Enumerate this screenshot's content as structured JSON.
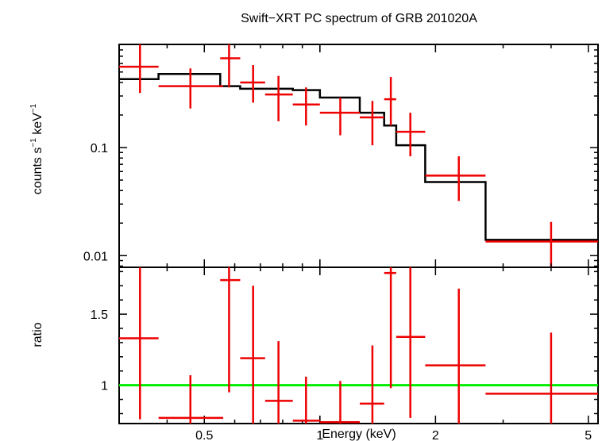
{
  "chart_data": [
    {
      "type": "scatter",
      "title": "Swift−XRT PC spectrum of GRB 201020A",
      "ylabel_main": "counts s",
      "ylabel_sup1": "−1",
      "ylabel_mid": " keV",
      "ylabel_sup2": "−1",
      "xscale": "log",
      "yscale": "log",
      "xlim": [
        0.3,
        5.3
      ],
      "ylim": [
        0.0078,
        0.9
      ],
      "yticks": [
        {
          "v": 0.01,
          "label": "0.01"
        },
        {
          "v": 0.1,
          "label": "0.1"
        }
      ],
      "colors": {
        "data": "#ee0000",
        "model": "#000000"
      },
      "data_points": [
        {
          "x": 0.34,
          "xlo": 0.3,
          "xhi": 0.38,
          "y": 0.56,
          "ylo": 0.32,
          "yhi": 0.92
        },
        {
          "x": 0.46,
          "xlo": 0.38,
          "xhi": 0.56,
          "y": 0.37,
          "ylo": 0.23,
          "yhi": 0.54
        },
        {
          "x": 0.58,
          "xlo": 0.55,
          "xhi": 0.62,
          "y": 0.67,
          "ylo": 0.36,
          "yhi": 0.9
        },
        {
          "x": 0.67,
          "xlo": 0.62,
          "xhi": 0.72,
          "y": 0.4,
          "ylo": 0.26,
          "yhi": 0.58
        },
        {
          "x": 0.78,
          "xlo": 0.72,
          "xhi": 0.85,
          "y": 0.31,
          "ylo": 0.175,
          "yhi": 0.46
        },
        {
          "x": 0.92,
          "xlo": 0.85,
          "xhi": 1.0,
          "y": 0.25,
          "ylo": 0.16,
          "yhi": 0.36
        },
        {
          "x": 1.13,
          "xlo": 1.0,
          "xhi": 1.27,
          "y": 0.21,
          "ylo": 0.13,
          "yhi": 0.29
        },
        {
          "x": 1.37,
          "xlo": 1.27,
          "xhi": 1.47,
          "y": 0.19,
          "ylo": 0.105,
          "yhi": 0.27
        },
        {
          "x": 1.53,
          "xlo": 1.47,
          "xhi": 1.58,
          "y": 0.28,
          "ylo": 0.16,
          "yhi": 0.45
        },
        {
          "x": 1.72,
          "xlo": 1.58,
          "xhi": 1.88,
          "y": 0.14,
          "ylo": 0.083,
          "yhi": 0.21
        },
        {
          "x": 2.3,
          "xlo": 1.88,
          "xhi": 2.7,
          "y": 0.055,
          "ylo": 0.032,
          "yhi": 0.083
        },
        {
          "x": 4.0,
          "xlo": 2.7,
          "xhi": 5.3,
          "y": 0.0135,
          "ylo": 0.0078,
          "yhi": 0.0205
        }
      ],
      "model_steps": [
        {
          "xlo": 0.3,
          "xhi": 0.38,
          "y": 0.43
        },
        {
          "xlo": 0.38,
          "xhi": 0.55,
          "y": 0.48
        },
        {
          "xlo": 0.55,
          "xhi": 0.62,
          "y": 0.37
        },
        {
          "xlo": 0.62,
          "xhi": 0.85,
          "y": 0.35
        },
        {
          "xlo": 0.85,
          "xhi": 1.0,
          "y": 0.34
        },
        {
          "xlo": 1.0,
          "xhi": 1.27,
          "y": 0.29
        },
        {
          "xlo": 1.27,
          "xhi": 1.47,
          "y": 0.21
        },
        {
          "xlo": 1.47,
          "xhi": 1.58,
          "y": 0.16
        },
        {
          "xlo": 1.58,
          "xhi": 1.88,
          "y": 0.105
        },
        {
          "xlo": 1.88,
          "xhi": 2.7,
          "y": 0.048
        },
        {
          "xlo": 2.7,
          "xhi": 5.3,
          "y": 0.014
        }
      ]
    },
    {
      "type": "scatter",
      "xlabel": "Energy (keV)",
      "ylabel": "ratio",
      "xscale": "log",
      "xlim": [
        0.3,
        5.3
      ],
      "ylim": [
        0.73,
        1.83
      ],
      "xticks": [
        {
          "v": 0.5,
          "label": "0.5"
        },
        {
          "v": 1,
          "label": "1"
        },
        {
          "v": 2,
          "label": "2"
        },
        {
          "v": 5,
          "label": "5"
        }
      ],
      "yticks": [
        {
          "v": 1,
          "label": "1"
        },
        {
          "v": 1.5,
          "label": "1.5"
        }
      ],
      "reference_line": 1,
      "colors": {
        "data": "#ee0000",
        "reference": "#00ee00"
      },
      "data_points": [
        {
          "x": 0.34,
          "xlo": 0.3,
          "xhi": 0.38,
          "y": 1.33,
          "ylo": 0.76,
          "yhi": 1.83
        },
        {
          "x": 0.46,
          "xlo": 0.38,
          "xhi": 0.56,
          "y": 0.77,
          "ylo": 0.73,
          "yhi": 1.07
        },
        {
          "x": 0.58,
          "xlo": 0.55,
          "xhi": 0.62,
          "y": 1.74,
          "ylo": 0.95,
          "yhi": 1.83
        },
        {
          "x": 0.67,
          "xlo": 0.62,
          "xhi": 0.72,
          "y": 1.19,
          "ylo": 0.73,
          "yhi": 1.7
        },
        {
          "x": 0.78,
          "xlo": 0.72,
          "xhi": 0.85,
          "y": 0.89,
          "ylo": 0.73,
          "yhi": 1.31
        },
        {
          "x": 0.92,
          "xlo": 0.85,
          "xhi": 1.0,
          "y": 0.75,
          "ylo": 0.73,
          "yhi": 1.06
        },
        {
          "x": 1.13,
          "xlo": 1.0,
          "xhi": 1.27,
          "y": 0.74,
          "ylo": 0.73,
          "yhi": 1.03
        },
        {
          "x": 1.37,
          "xlo": 1.27,
          "xhi": 1.47,
          "y": 0.87,
          "ylo": 0.73,
          "yhi": 1.28
        },
        {
          "x": 1.53,
          "xlo": 1.47,
          "xhi": 1.58,
          "y": 1.79,
          "ylo": 0.98,
          "yhi": 1.83
        },
        {
          "x": 1.72,
          "xlo": 1.58,
          "xhi": 1.88,
          "y": 1.34,
          "ylo": 0.77,
          "yhi": 1.83
        },
        {
          "x": 2.3,
          "xlo": 1.88,
          "xhi": 2.7,
          "y": 1.14,
          "ylo": 0.73,
          "yhi": 1.68
        },
        {
          "x": 4.0,
          "xlo": 2.7,
          "xhi": 5.3,
          "y": 0.94,
          "ylo": 0.73,
          "yhi": 1.37
        }
      ]
    }
  ]
}
